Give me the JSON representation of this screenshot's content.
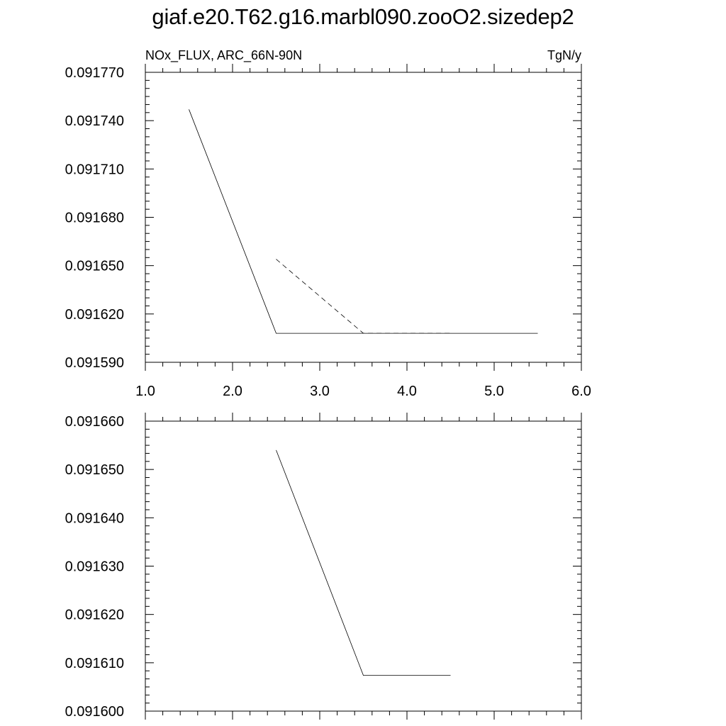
{
  "title": "giaf.e20.T62.g16.marbl090.zooO2.sizedep2",
  "chart_data": [
    {
      "type": "line",
      "title": "",
      "left_string": "NOx_FLUX, ARC_66N-90N",
      "right_string": "TgN/y",
      "xlim": [
        1.0,
        6.0
      ],
      "ylim": [
        0.09159,
        0.09177
      ],
      "x_ticks": [
        "1.0",
        "2.0",
        "3.0",
        "4.0",
        "5.0",
        "6.0"
      ],
      "y_ticks": [
        "0.091590",
        "0.091620",
        "0.091650",
        "0.091680",
        "0.091710",
        "0.091740",
        "0.091770"
      ],
      "series": [
        {
          "style": "solid",
          "x": [
            1.5,
            2.5,
            3.5,
            4.5,
            5.5
          ],
          "y": [
            0.091747,
            0.091608,
            0.091608,
            0.091608,
            0.091608
          ]
        },
        {
          "style": "dashed",
          "x": [
            2.5,
            3.5,
            4.5
          ],
          "y": [
            0.091654,
            0.091608,
            0.091608
          ]
        }
      ]
    },
    {
      "type": "line",
      "title": "",
      "xlim": [
        1.0,
        6.0
      ],
      "ylim": [
        0.0916,
        0.09166
      ],
      "x_ticks": [],
      "y_ticks": [
        "0.091600",
        "0.091610",
        "0.091620",
        "0.091630",
        "0.091640",
        "0.091650",
        "0.091660"
      ],
      "series": [
        {
          "style": "solid",
          "x": [
            2.5,
            3.5,
            4.5
          ],
          "y": [
            0.091654,
            0.0916074,
            0.0916074
          ]
        }
      ]
    }
  ]
}
